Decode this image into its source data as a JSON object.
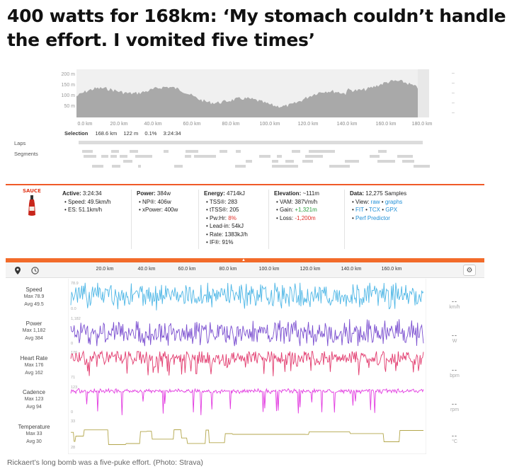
{
  "headline": "400 watts for 168km: ‘My stomach couldn’t handle the effort. I vomited five times’",
  "caption": "Rickaert’s long bomb was a five-puke effort. (Photo: Strava)",
  "elevation": {
    "y_labels": [
      "200 m",
      "150 m",
      "100 m",
      "50 m"
    ],
    "x_labels": [
      "0.0 km",
      "20.0 km",
      "40.0 km",
      "60.0 km",
      "80.0 km",
      "100.0 km",
      "120.0 km",
      "140.0 km",
      "160.0 km",
      "180.0 km"
    ],
    "side_marks": [
      "–",
      "–",
      "–",
      "–",
      "–"
    ]
  },
  "selection": {
    "label": "Selection",
    "distance": "168.6 km",
    "elevation": "122 m",
    "grade": "0.1%",
    "time": "3:24:34"
  },
  "rows": {
    "laps": "Laps",
    "segments": "Segments"
  },
  "stats": {
    "brand": "SAUCE",
    "active": {
      "label": "Active:",
      "value": "3:24:34",
      "lines": [
        "• Speed: 49.5km/h",
        "• ES: 51.1km/h"
      ]
    },
    "power": {
      "label": "Power:",
      "value": "384w",
      "lines": [
        "• NP®: 406w",
        "• xPower: 400w"
      ]
    },
    "energy": {
      "label": "Energy:",
      "value": "4714kJ",
      "lines": [
        "• TSS®: 283",
        "• tTSS®: 205",
        "• Lead-in: 54kJ",
        "• Rate: 1383kJ/h",
        "• IF®: 91%"
      ],
      "pwhr_label": "• Pw:Hr: ",
      "pwhr_value": "8%"
    },
    "elevation": {
      "label": "Elevation:",
      "value": "~111m",
      "vam": "• VAM: 387Vm/h",
      "gain_label": "• Gain: ",
      "gain_value": "+1,321m",
      "loss_label": "• Loss: ",
      "loss_value": "-1,200m"
    },
    "data": {
      "label": "Data:",
      "value": "12,275 Samples",
      "view_label": "• View: ",
      "view_raw": "raw",
      "view_sep": " • ",
      "view_graphs": "graphs",
      "fit": "FIT",
      "tcx": "TCX",
      "gpx": "GPX",
      "dot": " • ",
      "predictor": "Perf Predictor"
    }
  },
  "graph_x_labels": [
    "20.0 km",
    "40.0 km",
    "60.0 km",
    "80.0 km",
    "100.0 km",
    "120.0 km",
    "140.0 km",
    "160.0 km"
  ],
  "streams": [
    {
      "name": "Speed",
      "max": "Max 78.9",
      "avg": "Avg 49.5",
      "top": "78.9",
      "bottom": "0.0",
      "unit": "km/h",
      "dash": "--",
      "color": "#4fb7e6"
    },
    {
      "name": "Power",
      "max": "Max 1,182",
      "avg": "Avg 384",
      "top": "1,182",
      "bottom": "0",
      "unit": "W",
      "dash": "--",
      "color": "#7b4fd0"
    },
    {
      "name": "Heart Rate",
      "max": "Max 176",
      "avg": "Avg 162",
      "top": "176",
      "bottom": "71",
      "unit": "bpm",
      "dash": "--",
      "color": "#e23b6e"
    },
    {
      "name": "Cadence",
      "max": "Max 123",
      "avg": "Avg 94",
      "top": "123",
      "bottom": "0",
      "unit": "rpm",
      "dash": "--",
      "color": "#e23ae0"
    },
    {
      "name": "Temperature",
      "max": "Max 33",
      "avg": "Avg 30",
      "top": "33",
      "bottom": "28",
      "unit": "°C",
      "dash": "--",
      "color": "#b3a64b"
    }
  ],
  "icons": [
    "map-pin-icon",
    "clock-icon",
    "gear-icon",
    "sauce-bottle-icon"
  ]
}
